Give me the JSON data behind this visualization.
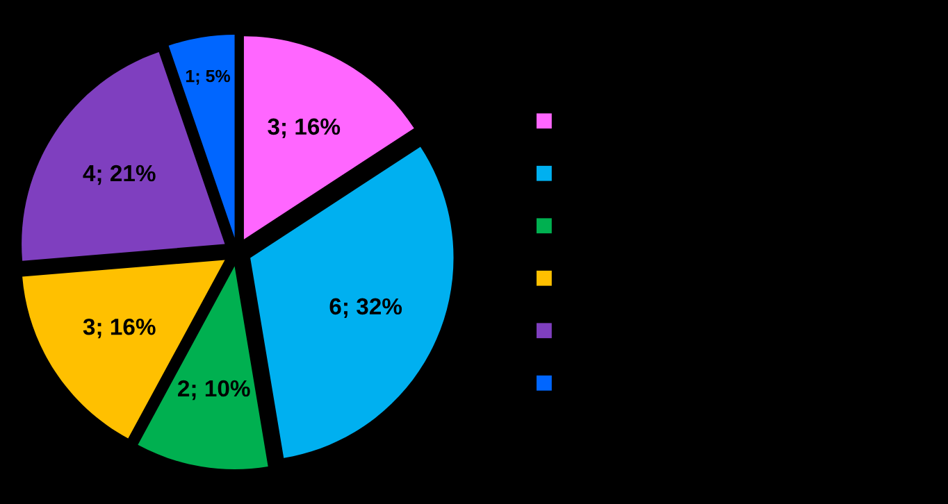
{
  "chart_data": {
    "type": "pie",
    "categories": [
      null,
      null,
      null,
      null,
      null,
      null
    ],
    "values": [
      3,
      6,
      2,
      3,
      4,
      1
    ],
    "colors": [
      "#ff66ff",
      "#00b0f0",
      "#00b050",
      "#ffc000",
      "#7f3fbf",
      "#0066ff"
    ],
    "value_labels": [
      "3; 16%",
      "6; 32%",
      "2; 10%",
      "3; 16%",
      "4; 21%",
      "1; 5%"
    ]
  }
}
